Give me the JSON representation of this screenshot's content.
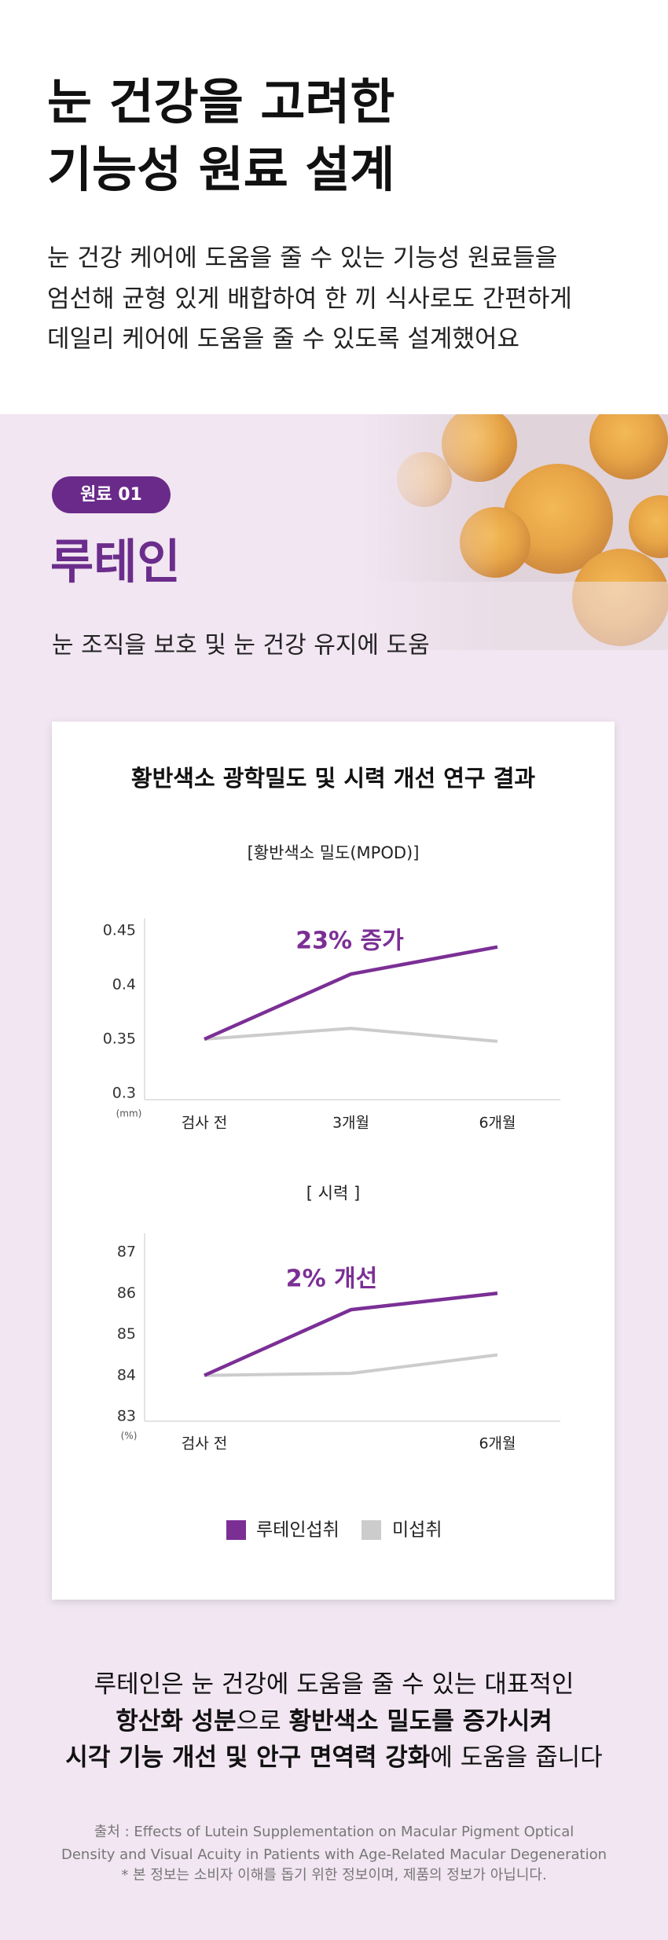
{
  "header": {
    "title": [
      "눈 건강을 고려한",
      "기능성 원료 설계"
    ],
    "description": [
      "눈 건강 케어에 도움을 줄 수 있는 기능성 원료들을",
      "엄선해 균형 있게 배합하여 한 끼 식사로도 간편하게",
      "데일리 케어에 도움을 줄 수 있도록 설계했어요"
    ]
  },
  "ingredient": {
    "badge": "원료 01",
    "name": "루테인",
    "summary": "눈 조직을 보호 및 눈 건강 유지에 도움"
  },
  "card": {
    "title": "황반색소 광학밀도 및 시력 개선 연구 결과"
  },
  "chart_data": [
    {
      "type": "line",
      "title": "[황반색소 밀도(MPOD)]",
      "unit": "(mm)",
      "annotation": "23% 증가",
      "categories": [
        "검사 전",
        "3개월",
        "6개월"
      ],
      "series": [
        {
          "name": "루테인섭취",
          "color": "#7b2f95",
          "values": [
            0.35,
            0.41,
            0.435
          ]
        },
        {
          "name": "미섭취",
          "color": "#cccccc",
          "values": [
            0.35,
            0.36,
            0.348
          ]
        }
      ],
      "ylim": [
        0.3,
        0.45
      ],
      "yticks": [
        0.3,
        0.35,
        0.4,
        0.45
      ]
    },
    {
      "type": "line",
      "title": "[ 시력 ]",
      "unit": "(%)",
      "annotation": "2% 개선",
      "categories": [
        "검사 전",
        null,
        "6개월"
      ],
      "series": [
        {
          "color": "#7b2f95",
          "values": [
            84.0,
            85.6,
            86.0
          ]
        },
        {
          "color": "#cccccc",
          "values": [
            84.0,
            84.05,
            84.5
          ]
        }
      ],
      "ylim": [
        83,
        87
      ],
      "yticks": [
        83,
        84,
        85,
        86,
        87
      ]
    }
  ],
  "footer": {
    "lines": [
      [
        {
          "text": "루테인은 눈 건강에 도움을 줄 수 있는 대표적인",
          "bold": false
        }
      ],
      [
        {
          "text": "항산화 성분",
          "bold": true
        },
        {
          "text": "으로 ",
          "bold": false
        },
        {
          "text": "황반색소 밀도를 증가시켜",
          "bold": true
        }
      ],
      [
        {
          "text": "시각 기능 개선 및 안구 면역력 강화",
          "bold": true
        },
        {
          "text": "에 도움을 줍니다",
          "bold": false
        }
      ]
    ],
    "source": [
      "출처 : Effects of Lutein Supplementation on Macular Pigment Optical",
      "Density and Visual Acuity in Patients with Age-Related Macular Degeneration",
      "* 본 정보는 소비자 이해를 돕기 위한 정보이며, 제품의 정보가 아닙니다."
    ]
  }
}
